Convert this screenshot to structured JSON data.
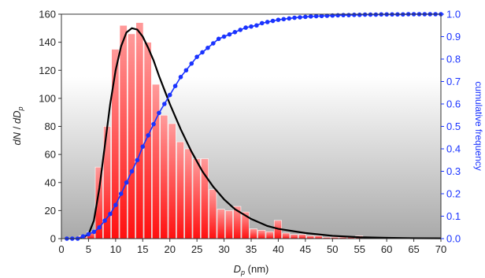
{
  "chart_data": {
    "type": "bar",
    "xlabel": {
      "symbol": "D",
      "subscript": "p",
      "unit": "(nm)"
    },
    "ylabel_left": {
      "numerator": "dN",
      "denominator": "dD",
      "subscript": "p"
    },
    "ylabel_right": "cumulative frequency",
    "xlim": [
      0,
      70
    ],
    "xticks": [
      0,
      5,
      10,
      15,
      20,
      25,
      30,
      35,
      40,
      45,
      50,
      55,
      60,
      65,
      70
    ],
    "ylim_left": [
      0,
      160
    ],
    "yticks_left": [
      0,
      20,
      40,
      60,
      80,
      100,
      120,
      140,
      160
    ],
    "ylim_right": [
      0,
      1.0
    ],
    "yticks_right": [
      "0.0",
      "0.1",
      "0.2",
      "0.3",
      "0.4",
      "0.5",
      "0.6",
      "0.7",
      "0.8",
      "0.9",
      "1.0"
    ],
    "bar_width": 1.5,
    "bars": {
      "x": [
        4,
        5.5,
        7,
        8.5,
        10,
        11.5,
        13,
        14.5,
        16,
        17.5,
        19,
        20.5,
        22,
        23.5,
        25,
        26.5,
        28,
        29.5,
        31,
        32.5,
        34,
        35.5,
        37,
        38.5,
        40,
        41.5,
        43,
        44.5,
        46,
        47.5,
        49,
        50.5,
        52,
        53.5,
        55,
        56.5
      ],
      "values": [
        2,
        5,
        51,
        80,
        135,
        152,
        146,
        154,
        140,
        110,
        88,
        82,
        69,
        64,
        57,
        57,
        35,
        21,
        20,
        23,
        19,
        7,
        6,
        5,
        13,
        4,
        3,
        3,
        2,
        2,
        1,
        1,
        1,
        1,
        2,
        1
      ],
      "color": "#ff2020"
    },
    "fit_curve": {
      "x": [
        3,
        4,
        5,
        6,
        7,
        8,
        9,
        10,
        11,
        12,
        13,
        14,
        15,
        16,
        17,
        18,
        19,
        20,
        22,
        24,
        26,
        28,
        30,
        32,
        35,
        38,
        40,
        45,
        50,
        55,
        60,
        65,
        70
      ],
      "y": [
        0,
        1,
        3,
        13,
        36,
        66,
        96,
        120,
        137,
        147,
        150,
        149,
        144,
        136,
        127,
        116,
        106,
        96,
        78,
        62,
        48,
        37,
        28,
        21,
        14,
        9,
        7,
        4,
        2,
        1,
        0.6,
        0.3,
        0.2
      ],
      "color": "#000000"
    },
    "cumulative": {
      "x": [
        1,
        2,
        3,
        4,
        5,
        6,
        7,
        8,
        9,
        10,
        11,
        12,
        13,
        14,
        15,
        16,
        17,
        18,
        19,
        20,
        21,
        22,
        23,
        24,
        25,
        26,
        27,
        28,
        29,
        30,
        31,
        32,
        33,
        34,
        35,
        36,
        37,
        38,
        39,
        40,
        41,
        42,
        43,
        44,
        45,
        46,
        47,
        48,
        49,
        50,
        51,
        52,
        53,
        54,
        55,
        56,
        57,
        58,
        59,
        60,
        61,
        62,
        63,
        64,
        65,
        66,
        67,
        68,
        69,
        70
      ],
      "y": [
        0.0,
        0.0,
        0.0,
        0.01,
        0.02,
        0.03,
        0.05,
        0.08,
        0.11,
        0.15,
        0.2,
        0.25,
        0.3,
        0.35,
        0.41,
        0.46,
        0.51,
        0.56,
        0.6,
        0.64,
        0.68,
        0.72,
        0.75,
        0.78,
        0.81,
        0.83,
        0.85,
        0.87,
        0.89,
        0.9,
        0.91,
        0.92,
        0.93,
        0.94,
        0.945,
        0.95,
        0.96,
        0.965,
        0.97,
        0.975,
        0.978,
        0.981,
        0.984,
        0.986,
        0.988,
        0.99,
        0.991,
        0.992,
        0.993,
        0.994,
        0.995,
        0.996,
        0.996,
        0.997,
        0.997,
        0.998,
        0.998,
        0.998,
        0.999,
        0.999,
        0.999,
        0.999,
        0.999,
        1.0,
        1.0,
        1.0,
        1.0,
        1.0,
        1.0,
        1.0
      ],
      "color": "#1a33ff"
    },
    "grid": false,
    "legend": "none"
  }
}
